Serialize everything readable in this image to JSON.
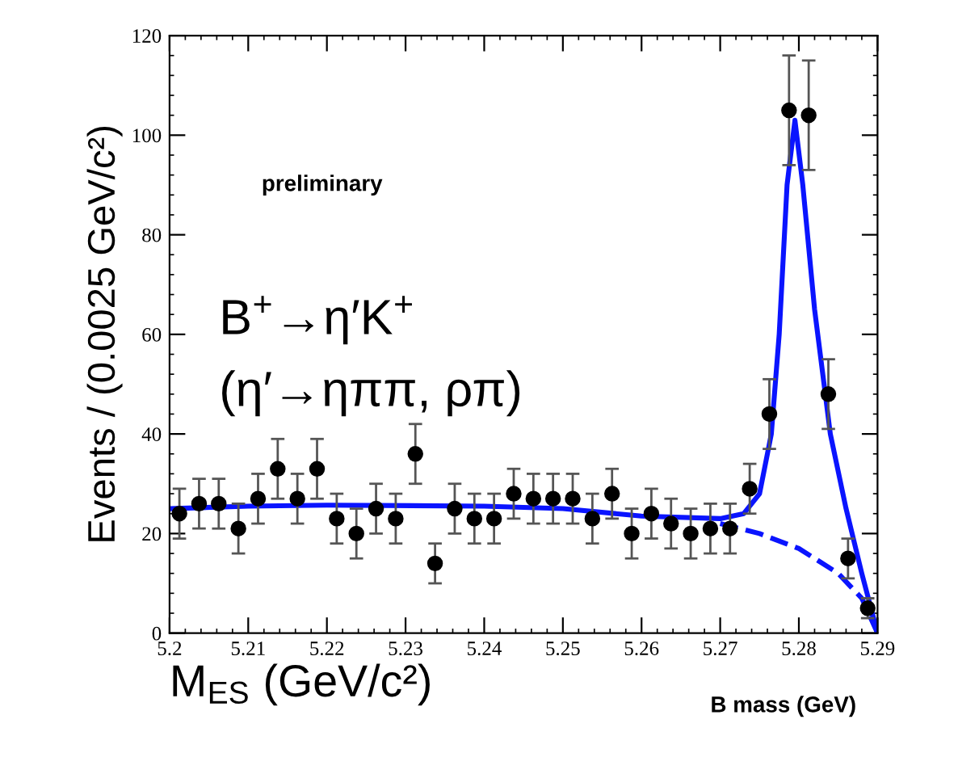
{
  "chart_data": {
    "type": "scatter",
    "xlabel": "M$_{ES}$ (GeV/c²)",
    "ylabel": "Events / (0.0025 GeV/c²)",
    "annotations": [
      "preliminary",
      "B$^{+}$→η′K$^{+}$",
      "(η′→ηππ, ρπ)",
      "B mass (GeV)"
    ],
    "xlim": [
      5.2,
      5.29
    ],
    "xticks": [
      5.2,
      5.21,
      5.22,
      5.23,
      5.24,
      5.25,
      5.26,
      5.27,
      5.28,
      5.29
    ],
    "ylim": [
      0,
      120
    ],
    "yticks": [
      0,
      20,
      40,
      60,
      80,
      100,
      120
    ],
    "grid": false,
    "legend": false,
    "series": [
      {
        "color": "#000000",
        "marker": "circle",
        "x": [
          5.20125,
          5.20375,
          5.20625,
          5.20875,
          5.21125,
          5.21375,
          5.21625,
          5.21875,
          5.22125,
          5.22375,
          5.22625,
          5.22875,
          5.23125,
          5.23375,
          5.23625,
          5.23875,
          5.24125,
          5.24375,
          5.24625,
          5.24875,
          5.25125,
          5.25375,
          5.25625,
          5.25875,
          5.26125,
          5.26375,
          5.26625,
          5.26875,
          5.27125,
          5.27375,
          5.27625,
          5.27875,
          5.28125,
          5.28375,
          5.28625,
          5.28875
        ],
        "values": [
          24,
          26,
          26,
          21,
          27,
          33,
          27,
          33,
          23,
          20,
          25,
          23,
          36,
          14,
          25,
          23,
          23,
          28,
          27,
          27,
          27,
          23,
          28,
          20,
          24,
          22,
          20,
          21,
          21,
          29,
          44,
          105,
          104,
          48,
          15,
          5
        ],
        "errors": [
          5,
          5,
          5,
          5,
          5,
          6,
          5,
          6,
          5,
          5,
          5,
          5,
          6,
          4,
          5,
          5,
          5,
          5,
          5,
          5,
          5,
          5,
          5,
          5,
          5,
          5,
          5,
          5,
          5,
          5,
          7,
          11,
          11,
          7,
          4,
          2
        ]
      },
      {
        "type": "line",
        "color": "#0a14ff",
        "line_style": "solid",
        "marker": "none",
        "x": [
          5.2,
          5.21,
          5.22,
          5.24,
          5.25,
          5.26,
          5.27,
          5.273,
          5.275,
          5.2765,
          5.2775,
          5.2785,
          5.2795,
          5.2805,
          5.282,
          5.284,
          5.286,
          5.288,
          5.29
        ],
        "values": [
          25,
          25.5,
          25.7,
          25.5,
          25,
          23.5,
          23,
          24,
          28,
          40,
          60,
          90,
          103,
          90,
          65,
          40,
          25,
          12,
          0
        ]
      },
      {
        "type": "line",
        "color": "#0a14ff",
        "line_style": "dashed",
        "marker": "none",
        "x": [
          5.27,
          5.275,
          5.28,
          5.285,
          5.288,
          5.29
        ],
        "values": [
          22,
          20,
          17,
          12,
          7,
          0
        ]
      }
    ]
  }
}
